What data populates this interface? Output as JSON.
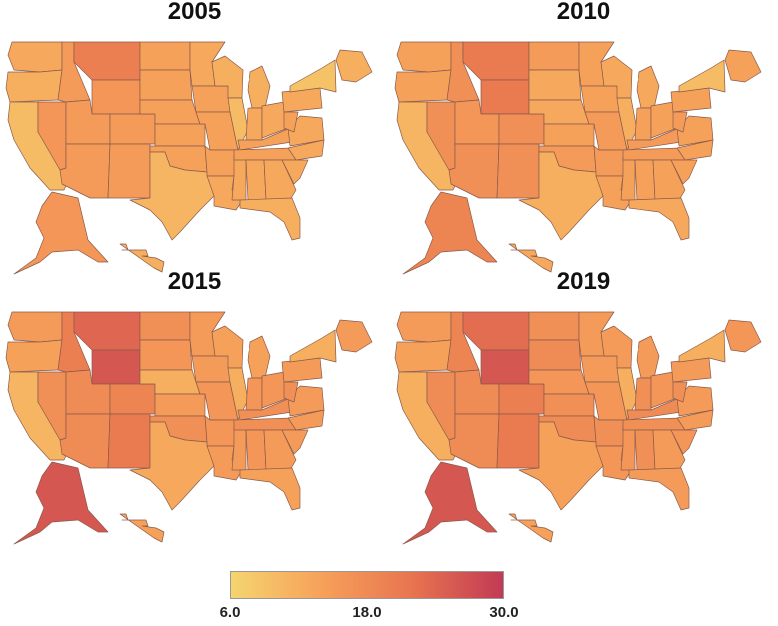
{
  "panels": [
    {
      "title": "2005"
    },
    {
      "title": "2010"
    },
    {
      "title": "2015"
    },
    {
      "title": "2019"
    }
  ],
  "colorbar": {
    "min_label": "6.0",
    "mid_label": "18.0",
    "max_label": "30.0",
    "range": [
      6.0,
      30.0
    ],
    "colors": [
      "#f5d56f",
      "#f6a15a",
      "#e8744f",
      "#c23a55"
    ]
  },
  "map_data": {
    "type": "choropleth",
    "scale_range": [
      6,
      30
    ],
    "regions": [
      "wa",
      "or",
      "ca",
      "nv",
      "id",
      "mt",
      "wy",
      "ut",
      "az",
      "co",
      "nm",
      "nd",
      "sd",
      "ne",
      "ks",
      "ok",
      "tx",
      "mn",
      "ia",
      "mo",
      "ar",
      "la",
      "wi",
      "il",
      "ms",
      "mi",
      "in",
      "ky",
      "tn",
      "al",
      "oh",
      "ga",
      "fl",
      "sc",
      "nc",
      "va",
      "wv",
      "pa",
      "ny",
      "me",
      "ak",
      "hi"
    ],
    "values": {
      "2005": [
        13,
        12,
        10,
        16,
        15,
        20,
        16,
        15,
        15,
        15,
        15,
        14,
        14,
        14,
        14,
        14,
        11,
        13,
        14,
        14,
        14,
        13,
        12,
        10,
        13,
        12,
        13,
        14,
        14,
        13,
        13,
        13,
        12,
        13,
        13,
        13,
        14,
        13,
        9,
        12,
        16,
        12
      ],
      "2010": [
        14,
        14,
        11,
        17,
        17,
        21,
        21,
        16,
        17,
        17,
        17,
        15,
        13,
        13,
        14,
        15,
        12,
        14,
        14,
        15,
        15,
        14,
        13,
        12,
        14,
        13,
        14,
        15,
        15,
        14,
        14,
        14,
        13,
        14,
        14,
        14,
        15,
        14,
        10,
        14,
        19,
        13
      ],
      "2015": [
        15,
        14,
        11,
        17,
        20,
        24,
        26,
        18,
        18,
        19,
        21,
        17,
        16,
        12,
        15,
        17,
        13,
        15,
        15,
        16,
        16,
        15,
        14,
        12,
        15,
        14,
        16,
        17,
        17,
        16,
        16,
        15,
        14,
        15,
        15,
        15,
        17,
        15,
        12,
        15,
        26,
        14
      ],
      "2019": [
        15,
        14,
        12,
        18,
        19,
        23,
        26,
        18,
        18,
        20,
        21,
        17,
        18,
        16,
        17,
        18,
        14,
        15,
        15,
        16,
        17,
        16,
        15,
        12,
        16,
        15,
        17,
        18,
        17,
        17,
        16,
        15,
        15,
        16,
        15,
        15,
        17,
        15,
        12,
        16,
        26,
        14
      ]
    }
  }
}
